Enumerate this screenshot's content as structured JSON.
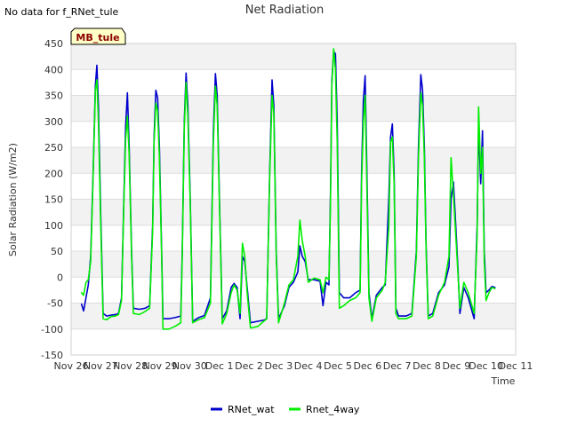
{
  "header": {
    "no_data_note": "No data for f_RNet_tule",
    "site_badge": "MB_tule"
  },
  "chart_data": {
    "type": "line",
    "title": "Net Radiation",
    "xlabel": "Time",
    "ylabel": "Solar Radiation (W/m2)",
    "ylim": [
      -150,
      450
    ],
    "xlim": [
      0,
      15
    ],
    "yticks": [
      -150,
      -100,
      -50,
      0,
      50,
      100,
      150,
      200,
      250,
      300,
      350,
      400,
      450
    ],
    "xticks": [
      {
        "x": 0,
        "label": "Nov 26"
      },
      {
        "x": 1,
        "label": "Nov 27"
      },
      {
        "x": 2,
        "label": "Nov 28"
      },
      {
        "x": 3,
        "label": "Nov 29"
      },
      {
        "x": 4,
        "label": "Nov 30"
      },
      {
        "x": 5,
        "label": "Dec 1"
      },
      {
        "x": 6,
        "label": "Dec 2"
      },
      {
        "x": 7,
        "label": "Dec 3"
      },
      {
        "x": 8,
        "label": "Dec 4"
      },
      {
        "x": 9,
        "label": "Dec 5"
      },
      {
        "x": 10,
        "label": "Dec 6"
      },
      {
        "x": 11,
        "label": "Dec 7"
      },
      {
        "x": 12,
        "label": "Dec 8"
      },
      {
        "x": 13,
        "label": "Dec 9"
      },
      {
        "x": 14,
        "label": "Dec 10"
      },
      {
        "x": 15,
        "label": "Dec 11"
      }
    ],
    "grid": true,
    "legend_position": "bottom",
    "series": [
      {
        "name": "RNet_wat",
        "color": "#0000cc",
        "points": [
          [
            0.35,
            -52
          ],
          [
            0.42,
            -65
          ],
          [
            0.5,
            -40
          ],
          [
            0.58,
            -15
          ],
          [
            0.66,
            40
          ],
          [
            0.74,
            200
          ],
          [
            0.82,
            370
          ],
          [
            0.87,
            408
          ],
          [
            0.92,
            330
          ],
          [
            1.0,
            120
          ],
          [
            1.08,
            -70
          ],
          [
            1.2,
            -75
          ],
          [
            1.35,
            -73
          ],
          [
            1.5,
            -72
          ],
          [
            1.6,
            -70
          ],
          [
            1.7,
            -40
          ],
          [
            1.78,
            150
          ],
          [
            1.84,
            290
          ],
          [
            1.9,
            355
          ],
          [
            1.96,
            250
          ],
          [
            2.04,
            50
          ],
          [
            2.1,
            -60
          ],
          [
            2.3,
            -62
          ],
          [
            2.5,
            -60
          ],
          [
            2.65,
            -55
          ],
          [
            2.75,
            100
          ],
          [
            2.8,
            270
          ],
          [
            2.86,
            360
          ],
          [
            2.92,
            345
          ],
          [
            2.98,
            250
          ],
          [
            3.05,
            60
          ],
          [
            3.1,
            -80
          ],
          [
            3.3,
            -80
          ],
          [
            3.5,
            -78
          ],
          [
            3.7,
            -75
          ],
          [
            3.75,
            50
          ],
          [
            3.82,
            300
          ],
          [
            3.88,
            393
          ],
          [
            3.94,
            330
          ],
          [
            4.02,
            150
          ],
          [
            4.1,
            -85
          ],
          [
            4.3,
            -78
          ],
          [
            4.5,
            -74
          ],
          [
            4.7,
            -40
          ],
          [
            4.8,
            280
          ],
          [
            4.87,
            392
          ],
          [
            4.93,
            350
          ],
          [
            5.0,
            160
          ],
          [
            5.1,
            -80
          ],
          [
            5.25,
            -65
          ],
          [
            5.4,
            -20
          ],
          [
            5.5,
            -12
          ],
          [
            5.6,
            -20
          ],
          [
            5.7,
            -80
          ],
          [
            5.78,
            40
          ],
          [
            5.86,
            30
          ],
          [
            5.94,
            -20
          ],
          [
            6.05,
            -88
          ],
          [
            6.3,
            -85
          ],
          [
            6.5,
            -83
          ],
          [
            6.6,
            -80
          ],
          [
            6.7,
            200
          ],
          [
            6.78,
            380
          ],
          [
            6.84,
            330
          ],
          [
            6.92,
            50
          ],
          [
            7.0,
            -80
          ],
          [
            7.2,
            -55
          ],
          [
            7.35,
            -20
          ],
          [
            7.5,
            -10
          ],
          [
            7.65,
            10
          ],
          [
            7.72,
            60
          ],
          [
            7.8,
            40
          ],
          [
            7.9,
            30
          ],
          [
            8.0,
            -5
          ],
          [
            8.2,
            -5
          ],
          [
            8.4,
            -8
          ],
          [
            8.5,
            -55
          ],
          [
            8.6,
            -10
          ],
          [
            8.7,
            -15
          ],
          [
            8.75,
            160
          ],
          [
            8.8,
            380
          ],
          [
            8.86,
            435
          ],
          [
            8.92,
            430
          ],
          [
            8.98,
            300
          ],
          [
            9.05,
            -30
          ],
          [
            9.2,
            -40
          ],
          [
            9.4,
            -40
          ],
          [
            9.6,
            -30
          ],
          [
            9.75,
            -25
          ],
          [
            9.8,
            200
          ],
          [
            9.86,
            340
          ],
          [
            9.92,
            388
          ],
          [
            9.98,
            200
          ],
          [
            10.05,
            -30
          ],
          [
            10.15,
            -80
          ],
          [
            10.3,
            -35
          ],
          [
            10.5,
            -20
          ],
          [
            10.6,
            -15
          ],
          [
            10.72,
            150
          ],
          [
            10.78,
            270
          ],
          [
            10.84,
            295
          ],
          [
            10.9,
            200
          ],
          [
            10.96,
            -60
          ],
          [
            11.05,
            -75
          ],
          [
            11.3,
            -75
          ],
          [
            11.5,
            -70
          ],
          [
            11.65,
            50
          ],
          [
            11.72,
            250
          ],
          [
            11.8,
            390
          ],
          [
            11.86,
            360
          ],
          [
            11.92,
            250
          ],
          [
            11.98,
            60
          ],
          [
            12.05,
            -75
          ],
          [
            12.2,
            -70
          ],
          [
            12.4,
            -30
          ],
          [
            12.6,
            -15
          ],
          [
            12.75,
            20
          ],
          [
            12.82,
            150
          ],
          [
            12.9,
            183
          ],
          [
            12.96,
            120
          ],
          [
            13.05,
            20
          ],
          [
            13.12,
            -70
          ],
          [
            13.25,
            -20
          ],
          [
            13.4,
            -40
          ],
          [
            13.5,
            -60
          ],
          [
            13.6,
            -80
          ],
          [
            13.7,
            100
          ],
          [
            13.75,
            290
          ],
          [
            13.82,
            180
          ],
          [
            13.88,
            282
          ],
          [
            13.94,
            50
          ],
          [
            14.0,
            -30
          ],
          [
            14.1,
            -25
          ],
          [
            14.2,
            -18
          ],
          [
            14.3,
            -20
          ]
        ]
      },
      {
        "name": "Rnet_4way",
        "color": "#00ee00",
        "points": [
          [
            0.35,
            -30
          ],
          [
            0.42,
            -35
          ],
          [
            0.5,
            -10
          ],
          [
            0.58,
            -5
          ],
          [
            0.66,
            30
          ],
          [
            0.74,
            190
          ],
          [
            0.82,
            360
          ],
          [
            0.87,
            380
          ],
          [
            0.92,
            300
          ],
          [
            1.0,
            100
          ],
          [
            1.08,
            -80
          ],
          [
            1.2,
            -82
          ],
          [
            1.35,
            -76
          ],
          [
            1.5,
            -75
          ],
          [
            1.6,
            -72
          ],
          [
            1.7,
            -45
          ],
          [
            1.78,
            140
          ],
          [
            1.84,
            265
          ],
          [
            1.9,
            310
          ],
          [
            1.96,
            235
          ],
          [
            2.04,
            40
          ],
          [
            2.1,
            -70
          ],
          [
            2.3,
            -72
          ],
          [
            2.5,
            -66
          ],
          [
            2.65,
            -60
          ],
          [
            2.75,
            90
          ],
          [
            2.8,
            260
          ],
          [
            2.86,
            335
          ],
          [
            2.92,
            320
          ],
          [
            2.98,
            230
          ],
          [
            3.05,
            50
          ],
          [
            3.1,
            -100
          ],
          [
            3.3,
            -100
          ],
          [
            3.5,
            -95
          ],
          [
            3.7,
            -88
          ],
          [
            3.75,
            40
          ],
          [
            3.82,
            290
          ],
          [
            3.88,
            375
          ],
          [
            3.94,
            310
          ],
          [
            4.02,
            140
          ],
          [
            4.1,
            -88
          ],
          [
            4.3,
            -82
          ],
          [
            4.5,
            -78
          ],
          [
            4.7,
            -50
          ],
          [
            4.8,
            260
          ],
          [
            4.87,
            368
          ],
          [
            4.93,
            330
          ],
          [
            5.0,
            150
          ],
          [
            5.1,
            -90
          ],
          [
            5.25,
            -70
          ],
          [
            5.4,
            -30
          ],
          [
            5.5,
            -15
          ],
          [
            5.6,
            -25
          ],
          [
            5.7,
            -70
          ],
          [
            5.78,
            65
          ],
          [
            5.86,
            40
          ],
          [
            5.94,
            -30
          ],
          [
            6.05,
            -98
          ],
          [
            6.3,
            -95
          ],
          [
            6.5,
            -85
          ],
          [
            6.6,
            -80
          ],
          [
            6.7,
            190
          ],
          [
            6.78,
            350
          ],
          [
            6.84,
            315
          ],
          [
            6.92,
            40
          ],
          [
            7.0,
            -88
          ],
          [
            7.2,
            -50
          ],
          [
            7.35,
            -15
          ],
          [
            7.5,
            -5
          ],
          [
            7.65,
            40
          ],
          [
            7.72,
            110
          ],
          [
            7.8,
            70
          ],
          [
            7.9,
            40
          ],
          [
            8.0,
            -10
          ],
          [
            8.2,
            -2
          ],
          [
            8.4,
            -5
          ],
          [
            8.5,
            -30
          ],
          [
            8.6,
            0
          ],
          [
            8.7,
            -5
          ],
          [
            8.75,
            140
          ],
          [
            8.8,
            370
          ],
          [
            8.86,
            440
          ],
          [
            8.92,
            400
          ],
          [
            8.98,
            260
          ],
          [
            9.05,
            -60
          ],
          [
            9.2,
            -55
          ],
          [
            9.4,
            -45
          ],
          [
            9.6,
            -40
          ],
          [
            9.75,
            -30
          ],
          [
            9.8,
            180
          ],
          [
            9.86,
            300
          ],
          [
            9.92,
            350
          ],
          [
            9.98,
            170
          ],
          [
            10.05,
            -40
          ],
          [
            10.15,
            -85
          ],
          [
            10.3,
            -40
          ],
          [
            10.5,
            -25
          ],
          [
            10.6,
            -10
          ],
          [
            10.72,
            95
          ],
          [
            10.78,
            260
          ],
          [
            10.84,
            270
          ],
          [
            10.9,
            180
          ],
          [
            10.96,
            -70
          ],
          [
            11.05,
            -80
          ],
          [
            11.3,
            -80
          ],
          [
            11.5,
            -75
          ],
          [
            11.65,
            40
          ],
          [
            11.72,
            230
          ],
          [
            11.8,
            355
          ],
          [
            11.86,
            330
          ],
          [
            11.92,
            230
          ],
          [
            11.98,
            50
          ],
          [
            12.05,
            -80
          ],
          [
            12.2,
            -75
          ],
          [
            12.4,
            -35
          ],
          [
            12.6,
            -10
          ],
          [
            12.75,
            40
          ],
          [
            12.82,
            230
          ],
          [
            12.9,
            160
          ],
          [
            12.96,
            100
          ],
          [
            13.05,
            10
          ],
          [
            13.12,
            -60
          ],
          [
            13.25,
            -10
          ],
          [
            13.4,
            -30
          ],
          [
            13.5,
            -50
          ],
          [
            13.6,
            -70
          ],
          [
            13.7,
            80
          ],
          [
            13.75,
            328
          ],
          [
            13.82,
            200
          ],
          [
            13.88,
            250
          ],
          [
            13.94,
            30
          ],
          [
            14.0,
            -45
          ],
          [
            14.1,
            -30
          ],
          [
            14.2,
            -20
          ],
          [
            14.3,
            -22
          ]
        ]
      }
    ]
  }
}
